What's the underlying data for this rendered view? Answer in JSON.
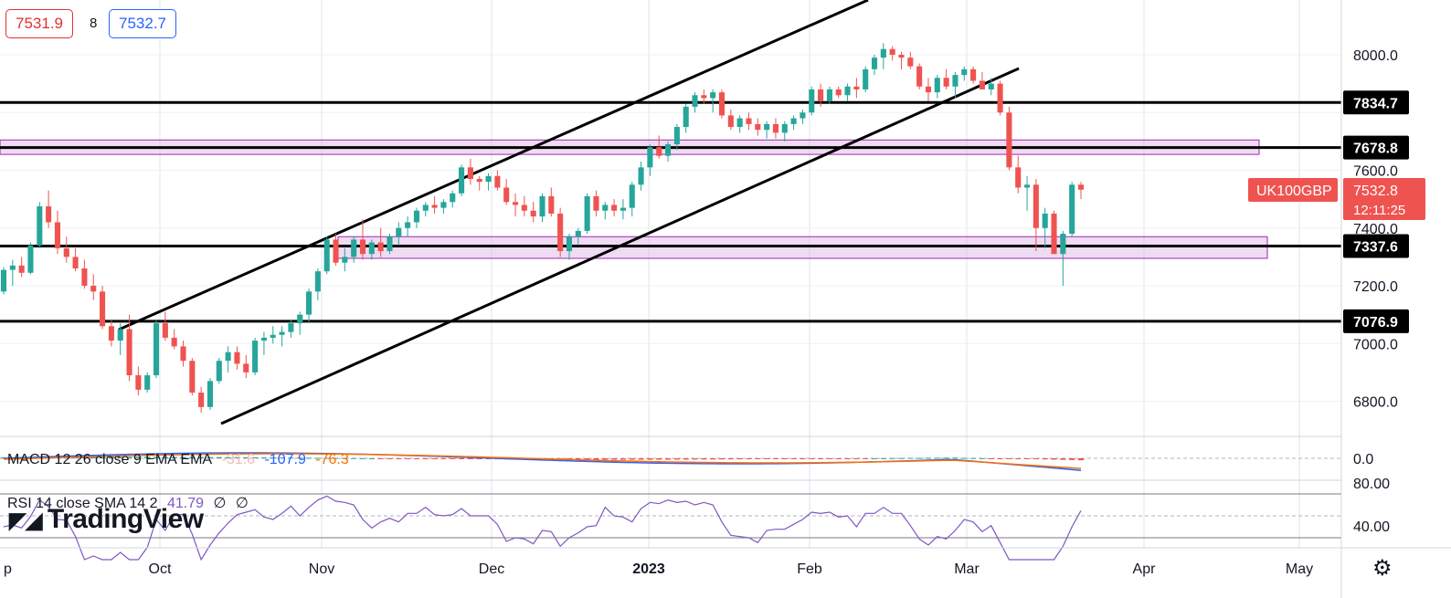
{
  "quote": {
    "bid": "7531.9",
    "spread": "8",
    "ask": "7532.7"
  },
  "symbol": "UK100GBP",
  "chart_data": {
    "type": "candlestick",
    "ylim": [
      6620,
      8150
    ],
    "yticks": [
      "8000.0",
      "7600.0",
      "7400.0",
      "7200.0",
      "7000.0",
      "6800.0"
    ],
    "x_labels": [
      "p",
      "Oct",
      "Nov",
      "Dec",
      "2023",
      "Feb",
      "Mar",
      "Apr",
      "May"
    ],
    "horizontal_levels": [
      {
        "value": 7834.7,
        "label": "7834.7"
      },
      {
        "value": 7678.8,
        "label": "7678.8"
      },
      {
        "value": 7337.6,
        "label": "7337.6"
      },
      {
        "value": 7076.9,
        "label": "7076.9"
      }
    ],
    "zones": [
      {
        "from": 7655,
        "to": 7705
      },
      {
        "from": 7295,
        "to": 7370
      }
    ],
    "last_price": {
      "value": "7532.8",
      "countdown": "12:11:25"
    },
    "candles": [
      [
        7180,
        7265,
        7170,
        7255
      ],
      [
        7255,
        7290,
        7200,
        7270
      ],
      [
        7270,
        7300,
        7230,
        7245
      ],
      [
        7245,
        7350,
        7240,
        7340
      ],
      [
        7340,
        7490,
        7330,
        7475
      ],
      [
        7475,
        7530,
        7400,
        7420
      ],
      [
        7420,
        7460,
        7310,
        7330
      ],
      [
        7330,
        7370,
        7280,
        7300
      ],
      [
        7300,
        7330,
        7250,
        7260
      ],
      [
        7260,
        7290,
        7190,
        7200
      ],
      [
        7200,
        7240,
        7150,
        7180
      ],
      [
        7180,
        7200,
        7050,
        7060
      ],
      [
        7060,
        7080,
        6990,
        7010
      ],
      [
        7010,
        7070,
        6960,
        7050
      ],
      [
        7050,
        7100,
        6870,
        6890
      ],
      [
        6890,
        6920,
        6820,
        6840
      ],
      [
        6840,
        6900,
        6830,
        6890
      ],
      [
        6890,
        7080,
        6880,
        7070
      ],
      [
        7070,
        7110,
        7010,
        7020
      ],
      [
        7020,
        7050,
        6980,
        6990
      ],
      [
        6990,
        7010,
        6920,
        6940
      ],
      [
        6940,
        6950,
        6820,
        6830
      ],
      [
        6830,
        6850,
        6760,
        6780
      ],
      [
        6780,
        6880,
        6770,
        6870
      ],
      [
        6870,
        6950,
        6860,
        6940
      ],
      [
        6940,
        6990,
        6900,
        6970
      ],
      [
        6970,
        6990,
        6910,
        6930
      ],
      [
        6930,
        6960,
        6880,
        6900
      ],
      [
        6900,
        7020,
        6890,
        7010
      ],
      [
        7010,
        7040,
        6960,
        7020
      ],
      [
        7020,
        7060,
        7000,
        7030
      ],
      [
        7030,
        7060,
        6990,
        7040
      ],
      [
        7040,
        7080,
        7020,
        7070
      ],
      [
        7070,
        7110,
        7030,
        7100
      ],
      [
        7100,
        7190,
        7070,
        7180
      ],
      [
        7180,
        7260,
        7150,
        7250
      ],
      [
        7250,
        7370,
        7240,
        7360
      ],
      [
        7360,
        7380,
        7270,
        7280
      ],
      [
        7280,
        7330,
        7250,
        7300
      ],
      [
        7300,
        7370,
        7280,
        7360
      ],
      [
        7360,
        7430,
        7290,
        7310
      ],
      [
        7310,
        7360,
        7290,
        7350
      ],
      [
        7350,
        7400,
        7300,
        7320
      ],
      [
        7320,
        7380,
        7310,
        7370
      ],
      [
        7370,
        7420,
        7340,
        7400
      ],
      [
        7400,
        7440,
        7370,
        7420
      ],
      [
        7420,
        7470,
        7400,
        7460
      ],
      [
        7460,
        7490,
        7440,
        7480
      ],
      [
        7480,
        7510,
        7450,
        7470
      ],
      [
        7470,
        7500,
        7450,
        7490
      ],
      [
        7490,
        7530,
        7470,
        7520
      ],
      [
        7520,
        7620,
        7510,
        7610
      ],
      [
        7610,
        7640,
        7550,
        7570
      ],
      [
        7570,
        7580,
        7530,
        7560
      ],
      [
        7560,
        7590,
        7530,
        7580
      ],
      [
        7580,
        7600,
        7530,
        7540
      ],
      [
        7540,
        7570,
        7480,
        7490
      ],
      [
        7490,
        7520,
        7440,
        7480
      ],
      [
        7480,
        7510,
        7440,
        7460
      ],
      [
        7460,
        7490,
        7420,
        7440
      ],
      [
        7440,
        7520,
        7420,
        7510
      ],
      [
        7510,
        7540,
        7440,
        7450
      ],
      [
        7450,
        7470,
        7300,
        7320
      ],
      [
        7320,
        7380,
        7290,
        7370
      ],
      [
        7370,
        7400,
        7340,
        7390
      ],
      [
        7390,
        7520,
        7380,
        7510
      ],
      [
        7510,
        7530,
        7440,
        7460
      ],
      [
        7460,
        7490,
        7430,
        7480
      ],
      [
        7480,
        7500,
        7440,
        7460
      ],
      [
        7460,
        7500,
        7430,
        7470
      ],
      [
        7470,
        7560,
        7440,
        7550
      ],
      [
        7550,
        7630,
        7530,
        7610
      ],
      [
        7610,
        7690,
        7580,
        7680
      ],
      [
        7680,
        7720,
        7640,
        7650
      ],
      [
        7650,
        7700,
        7630,
        7690
      ],
      [
        7690,
        7760,
        7670,
        7750
      ],
      [
        7750,
        7830,
        7730,
        7820
      ],
      [
        7820,
        7870,
        7800,
        7860
      ],
      [
        7860,
        7880,
        7830,
        7850
      ],
      [
        7850,
        7880,
        7800,
        7870
      ],
      [
        7870,
        7880,
        7780,
        7790
      ],
      [
        7790,
        7810,
        7740,
        7750
      ],
      [
        7750,
        7790,
        7730,
        7780
      ],
      [
        7780,
        7800,
        7740,
        7760
      ],
      [
        7760,
        7780,
        7720,
        7740
      ],
      [
        7740,
        7770,
        7710,
        7760
      ],
      [
        7760,
        7780,
        7710,
        7730
      ],
      [
        7730,
        7770,
        7700,
        7760
      ],
      [
        7760,
        7790,
        7740,
        7780
      ],
      [
        7780,
        7810,
        7760,
        7800
      ],
      [
        7800,
        7890,
        7790,
        7880
      ],
      [
        7880,
        7900,
        7820,
        7840
      ],
      [
        7840,
        7890,
        7830,
        7880
      ],
      [
        7880,
        7890,
        7850,
        7860
      ],
      [
        7860,
        7900,
        7840,
        7890
      ],
      [
        7890,
        7920,
        7850,
        7880
      ],
      [
        7880,
        7960,
        7870,
        7950
      ],
      [
        7950,
        8000,
        7930,
        7990
      ],
      [
        7990,
        8040,
        7950,
        8020
      ],
      [
        8020,
        8030,
        7980,
        8000
      ],
      [
        8000,
        8010,
        7950,
        7990
      ],
      [
        7990,
        8010,
        7950,
        7960
      ],
      [
        7960,
        7970,
        7880,
        7890
      ],
      [
        7890,
        7920,
        7840,
        7870
      ],
      [
        7870,
        7930,
        7850,
        7920
      ],
      [
        7920,
        7950,
        7880,
        7890
      ],
      [
        7890,
        7940,
        7850,
        7930
      ],
      [
        7930,
        7960,
        7910,
        7950
      ],
      [
        7950,
        7960,
        7900,
        7910
      ],
      [
        7910,
        7940,
        7880,
        7880
      ],
      [
        7880,
        7920,
        7860,
        7900
      ],
      [
        7900,
        7910,
        7790,
        7800
      ],
      [
        7800,
        7820,
        7600,
        7610
      ],
      [
        7610,
        7650,
        7520,
        7540
      ],
      [
        7540,
        7580,
        7460,
        7550
      ],
      [
        7550,
        7570,
        7320,
        7400
      ],
      [
        7400,
        7470,
        7330,
        7450
      ],
      [
        7450,
        7460,
        7310,
        7310
      ],
      [
        7310,
        7390,
        7200,
        7380
      ],
      [
        7380,
        7560,
        7370,
        7550
      ],
      [
        7550,
        7560,
        7500,
        7532.8
      ]
    ]
  },
  "macd": {
    "label": "MACD 12 26 close 9 EMA EMA",
    "histogram_value": "-31.6",
    "macd_value": "-107.9",
    "signal_value": "-76.3",
    "axis_tick": "0.0",
    "colors": {
      "macd": "#2962ff",
      "signal": "#ff6d00"
    }
  },
  "rsi": {
    "label": "RSI 14 close SMA 14 2",
    "value": "41.79",
    "extra1": "∅",
    "extra2": "∅",
    "ticks": [
      "80.00",
      "40.00"
    ],
    "color": "#7e57c2"
  },
  "branding": {
    "logo_text": "TradingView",
    "logo_icon": "tv-logo-icon"
  },
  "colors": {
    "up": "#26a69a",
    "down": "#ef5350",
    "zone": "#e1bee7",
    "zone_border": "#9c27b0"
  }
}
